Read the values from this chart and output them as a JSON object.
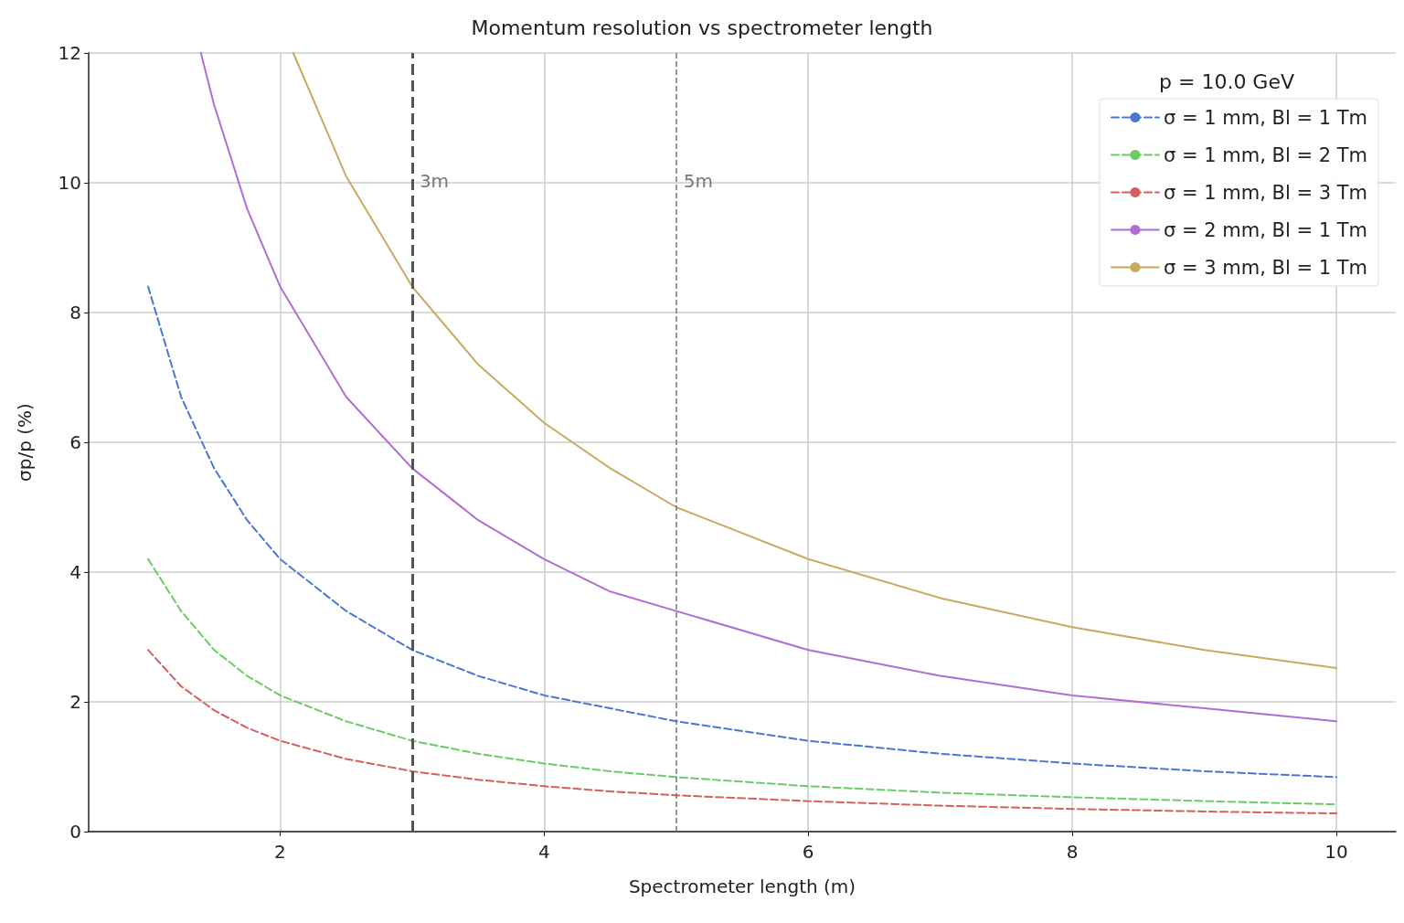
{
  "chart_data": {
    "type": "line",
    "title": "Momentum resolution vs spectrometer length",
    "xlabel": "Spectrometer length (m)",
    "ylabel": "σp/p (%)",
    "legend_title": "p = 10.0 GeV",
    "xlim": [
      0.55,
      10.45
    ],
    "xticks": [
      2,
      4,
      6,
      8,
      10
    ],
    "ylim": [
      0,
      12
    ],
    "yticks": [
      0,
      2,
      4,
      6,
      8,
      10,
      12
    ],
    "grid": true,
    "legend": "top right",
    "marker": "none",
    "series": [
      {
        "name": "σ = 1 mm, Bl = 1 Tm",
        "color": "#4878d0",
        "line_style": "dashed",
        "x": [
          1,
          1.25,
          1.5,
          1.75,
          2,
          2.5,
          3,
          3.5,
          4,
          4.5,
          5,
          6,
          7,
          8,
          9,
          10
        ],
        "values": [
          8.4,
          6.7,
          5.6,
          4.8,
          4.2,
          3.4,
          2.8,
          2.4,
          2.1,
          1.9,
          1.7,
          1.4,
          1.2,
          1.05,
          0.93,
          0.84
        ]
      },
      {
        "name": "σ = 1 mm, Bl = 2 Tm",
        "color": "#6acc64",
        "line_style": "dashed",
        "x": [
          1,
          1.25,
          1.5,
          1.75,
          2,
          2.5,
          3,
          3.5,
          4,
          4.5,
          5,
          6,
          7,
          8,
          9,
          10
        ],
        "values": [
          4.2,
          3.4,
          2.8,
          2.4,
          2.1,
          1.7,
          1.4,
          1.2,
          1.05,
          0.93,
          0.84,
          0.7,
          0.6,
          0.53,
          0.47,
          0.42
        ]
      },
      {
        "name": "σ = 1 mm, Bl = 3 Tm",
        "color": "#d65f5f",
        "line_style": "dashed",
        "x": [
          1,
          1.25,
          1.5,
          1.75,
          2,
          2.5,
          3,
          3.5,
          4,
          4.5,
          5,
          6,
          7,
          8,
          9,
          10
        ],
        "values": [
          2.8,
          2.24,
          1.87,
          1.6,
          1.4,
          1.12,
          0.93,
          0.8,
          0.7,
          0.62,
          0.56,
          0.47,
          0.4,
          0.35,
          0.31,
          0.28
        ]
      },
      {
        "name": "σ = 2 mm, Bl = 1 Tm",
        "color": "#b06fd0",
        "line_style": "solid",
        "x": [
          1.4,
          1.5,
          1.75,
          2,
          2.5,
          3,
          3.5,
          4,
          4.5,
          5,
          6,
          7,
          8,
          9,
          10
        ],
        "values": [
          12,
          11.2,
          9.6,
          8.4,
          6.7,
          5.6,
          4.8,
          4.2,
          3.7,
          3.4,
          2.8,
          2.4,
          2.1,
          1.9,
          1.7
        ]
      },
      {
        "name": "σ = 3 mm, Bl = 1 Tm",
        "color": "#c9aa5f",
        "line_style": "solid",
        "x": [
          2.1,
          2.5,
          3,
          3.5,
          4,
          4.5,
          5,
          6,
          7,
          8,
          9,
          10
        ],
        "values": [
          12,
          10.1,
          8.4,
          7.2,
          6.3,
          5.6,
          5.0,
          4.2,
          3.6,
          3.15,
          2.8,
          2.52
        ]
      }
    ],
    "ref_lines": [
      {
        "axis": "x",
        "value": 3,
        "label": "3m",
        "color": "#555555",
        "line_style": "dashed"
      },
      {
        "axis": "x",
        "value": 5,
        "label": "5m",
        "color": "#777777",
        "line_style": "dashed"
      }
    ]
  }
}
